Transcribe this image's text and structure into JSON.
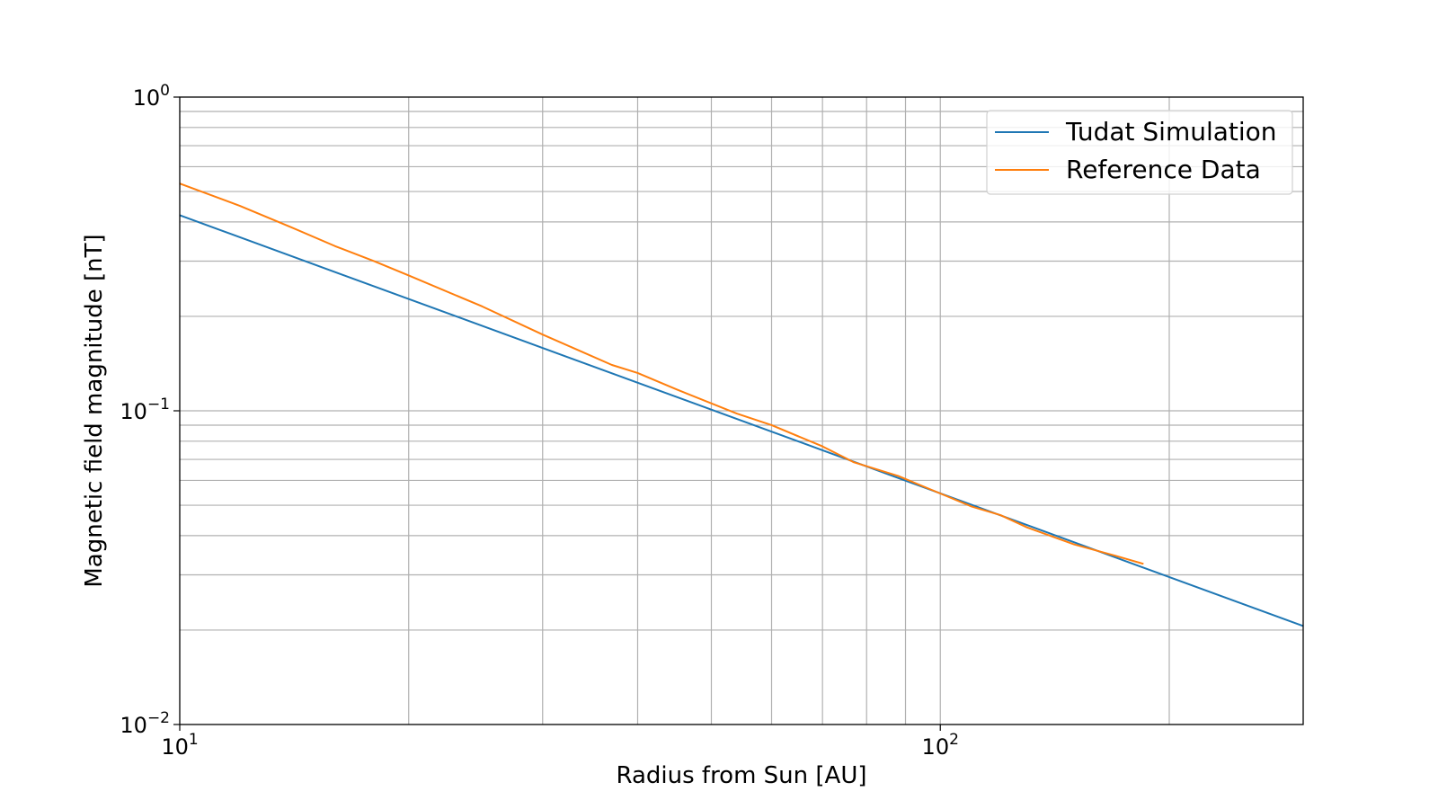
{
  "chart_data": {
    "type": "line",
    "title": "",
    "xlabel": "Radius from Sun [AU]",
    "ylabel": "Magnetic field magnitude [nT]",
    "xscale": "log",
    "yscale": "log",
    "xlim": [
      10,
      300
    ],
    "ylim": [
      0.01,
      1
    ],
    "x_ticks": [
      {
        "value": 10,
        "base": "10",
        "exp": "1"
      },
      {
        "value": 100,
        "base": "10",
        "exp": "2"
      }
    ],
    "y_ticks": [
      {
        "value": 1,
        "base": "10",
        "exp": "0"
      },
      {
        "value": 0.1,
        "base": "10",
        "exp": "−1"
      },
      {
        "value": 0.01,
        "base": "10",
        "exp": "−2"
      }
    ],
    "grid": true,
    "legend_position": "top-right",
    "series": [
      {
        "name": "Tudat Simulation",
        "color": "#1f77b4",
        "x": [
          10,
          300
        ],
        "y": [
          0.42,
          0.0206
        ]
      },
      {
        "name": "Reference Data",
        "color": "#ff7f0e",
        "x": [
          10,
          12,
          14,
          16,
          18,
          20,
          25,
          30,
          37,
          40,
          45,
          54,
          60,
          70,
          77,
          88,
          100,
          110,
          120,
          130,
          150,
          170,
          185
        ],
        "y": [
          0.53,
          0.45,
          0.385,
          0.335,
          0.3,
          0.27,
          0.215,
          0.175,
          0.14,
          0.132,
          0.117,
          0.098,
          0.09,
          0.077,
          0.0685,
          0.062,
          0.0545,
          0.0495,
          0.0465,
          0.0425,
          0.0375,
          0.0345,
          0.0325
        ]
      }
    ]
  }
}
